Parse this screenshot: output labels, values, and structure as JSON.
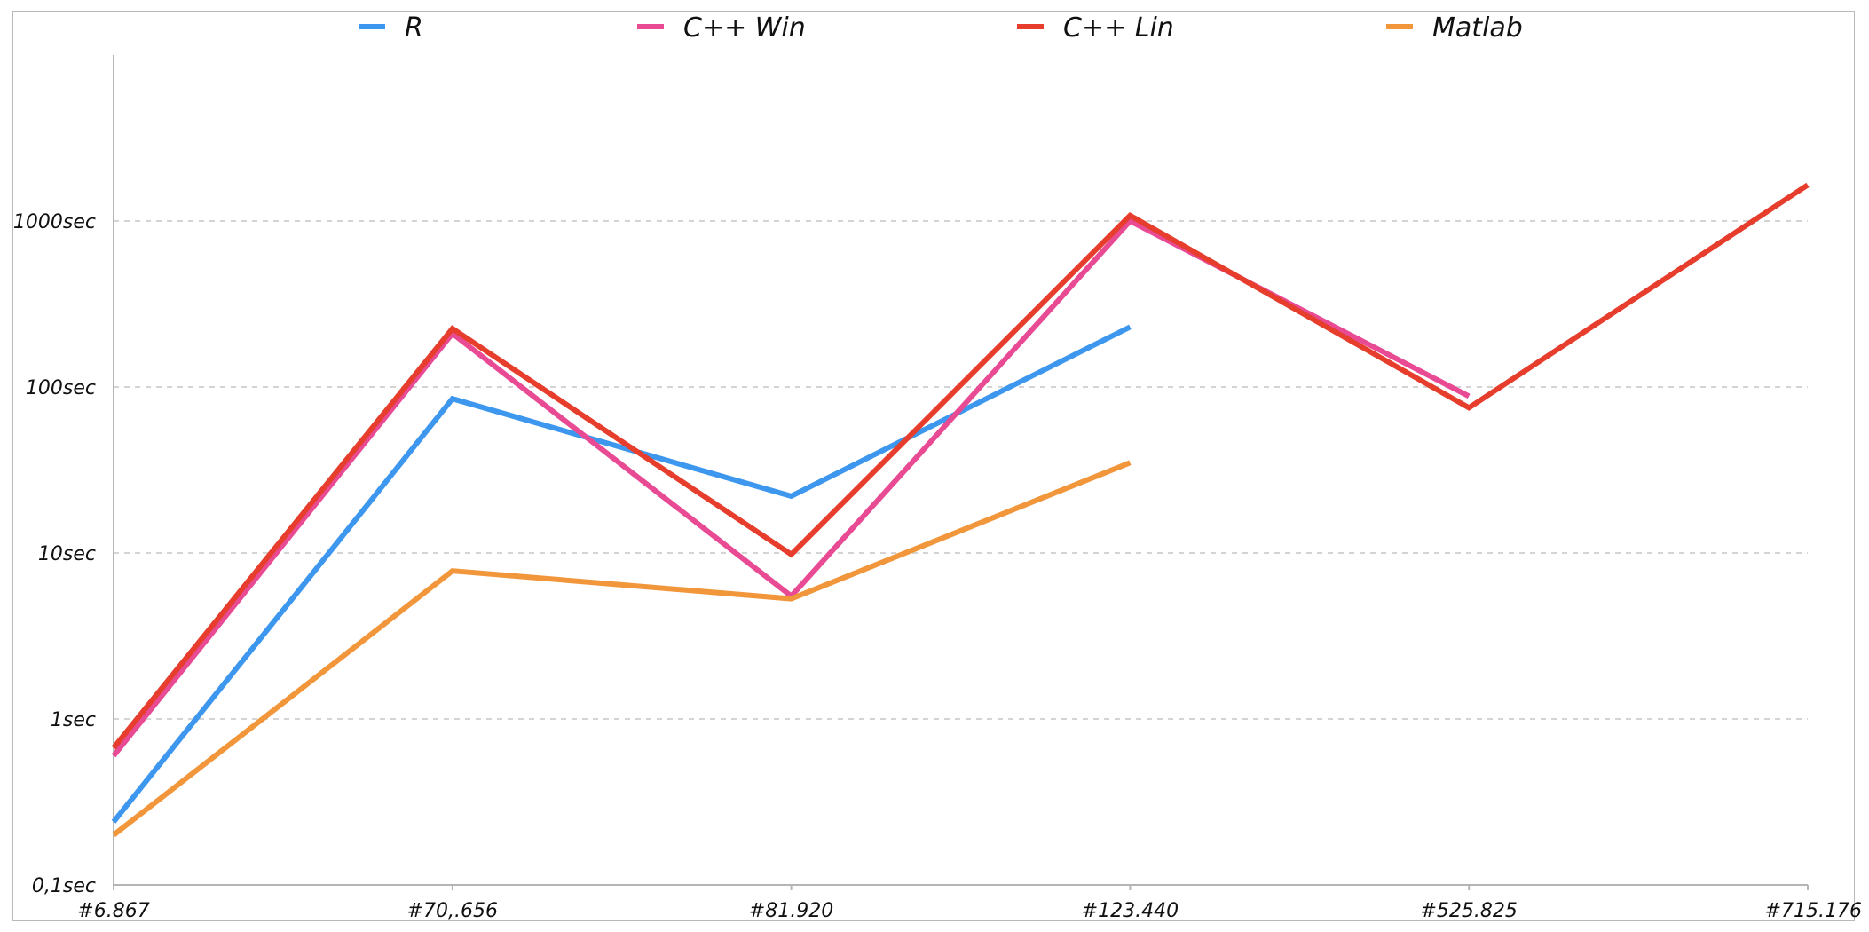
{
  "chart_data": {
    "type": "line",
    "title": "",
    "xlabel": "",
    "ylabel": "",
    "yscale": "log",
    "ylim": [
      0.1,
      10000
    ],
    "grid": true,
    "legend_position": "top",
    "categories": [
      "#6.867",
      "#70,.656",
      "#81.920",
      "#123.440",
      "#525.825",
      "#715.176"
    ],
    "y_ticks": [
      {
        "value": 0.1,
        "label": "0,1sec"
      },
      {
        "value": 1,
        "label": "1sec"
      },
      {
        "value": 10,
        "label": "10sec"
      },
      {
        "value": 100,
        "label": "100sec"
      },
      {
        "value": 1000,
        "label": "1000sec"
      }
    ],
    "series": [
      {
        "name": "R",
        "color": "#3d97ee",
        "values": [
          0.24,
          85,
          22,
          230,
          null,
          null
        ]
      },
      {
        "name": "C++ Win",
        "color": "#e84a93",
        "values": [
          0.6,
          210,
          5.5,
          1000,
          88,
          null
        ]
      },
      {
        "name": "C++ Lin",
        "color": "#e63d2c",
        "values": [
          0.67,
          225,
          9.8,
          1080,
          75,
          1650
        ]
      },
      {
        "name": "Matlab",
        "color": "#f1963a",
        "values": [
          0.2,
          7.8,
          5.3,
          35,
          null,
          null
        ]
      }
    ]
  }
}
